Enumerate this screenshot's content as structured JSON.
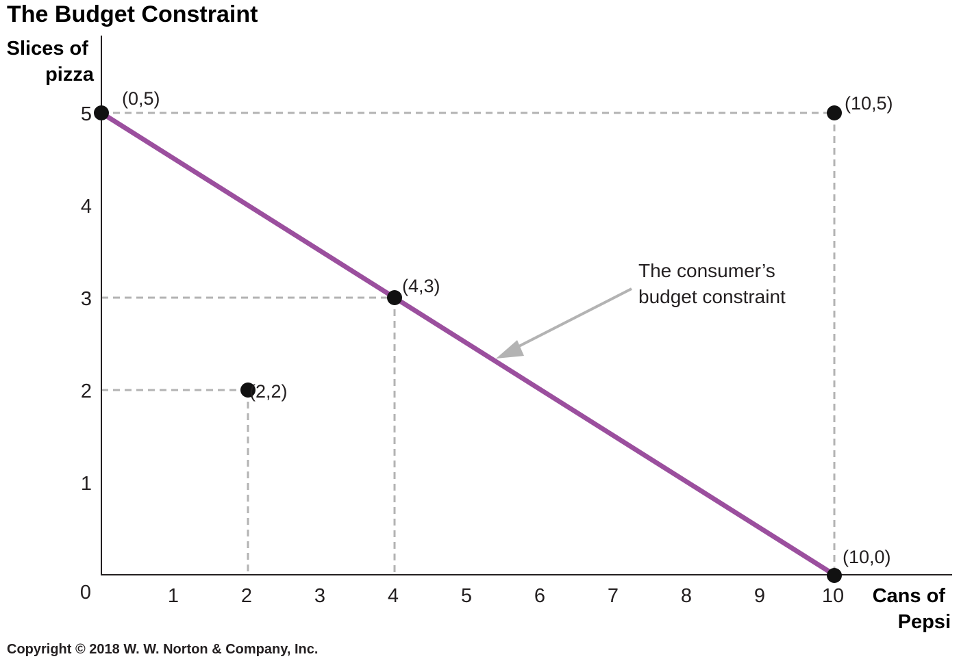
{
  "chart_data": {
    "type": "line",
    "title": "The Budget Constraint",
    "ylabel_lines": [
      "Slices of",
      "pizza"
    ],
    "xlabel_lines": [
      "Cans of",
      "Pepsi"
    ],
    "xlim": [
      0,
      10
    ],
    "ylim": [
      0,
      5
    ],
    "x_ticks": [
      "0",
      "1",
      "2",
      "3",
      "4",
      "5",
      "6",
      "7",
      "8",
      "9",
      "10"
    ],
    "y_ticks": [
      "1",
      "2",
      "3",
      "4",
      "5"
    ],
    "grid": false,
    "budget_line": {
      "x": [
        0,
        10
      ],
      "y": [
        5,
        0
      ],
      "color": "#9b4f9e"
    },
    "points": [
      {
        "x": 0,
        "y": 5,
        "label": "(0,5)"
      },
      {
        "x": 10,
        "y": 5,
        "label": "(10,5)"
      },
      {
        "x": 4,
        "y": 3,
        "label": "(4,3)"
      },
      {
        "x": 2,
        "y": 2,
        "label": "(2,2)"
      },
      {
        "x": 10,
        "y": 0,
        "label": "(10,0)"
      }
    ],
    "annotation": {
      "lines": [
        "The consumer’s",
        "budget constraint"
      ],
      "arrow_color": "#b3b3b3"
    },
    "guide_color": "#b3b3b3",
    "point_color": "#111111"
  },
  "copyright": "Copyright © 2018 W. W. Norton & Company, Inc."
}
